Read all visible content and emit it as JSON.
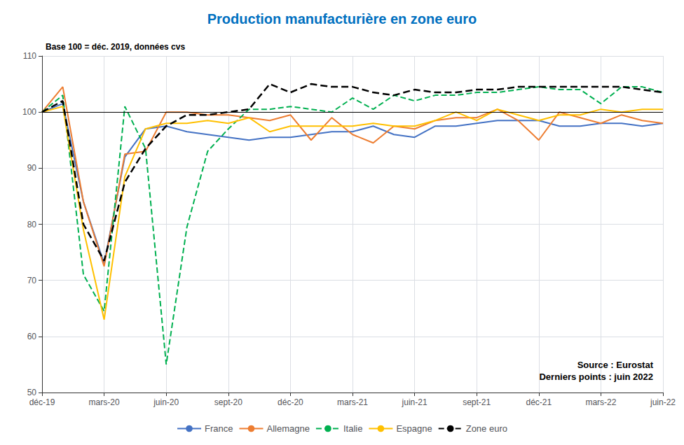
{
  "chart_data": {
    "type": "line",
    "title": "Production manufacturière en zone euro",
    "subtitle": "Base 100 = déc. 2019, données cvs",
    "annotations": [
      "Source : Eurostat\nDerniers points : juin 2022"
    ],
    "categories": [
      "déc-19",
      null,
      null,
      "mars-20",
      null,
      null,
      "juin-20",
      null,
      null,
      "sept-20",
      null,
      null,
      "déc-20",
      null,
      null,
      "mars-21",
      null,
      null,
      "juin-21",
      null,
      null,
      "sept-21",
      null,
      null,
      "déc-21",
      null,
      null,
      "mars-22",
      null,
      null,
      "juin-22"
    ],
    "ylim": [
      50,
      110
    ],
    "yticks": [
      50,
      60,
      70,
      80,
      90,
      100,
      110
    ],
    "hline": 100,
    "grid": true,
    "legend": "bottom",
    "series": [
      {
        "name": "France",
        "color": "#4472C4",
        "line_style": "solid",
        "values": [
          100.0,
          101.5,
          84.0,
          73.0,
          92.0,
          97.0,
          97.5,
          96.5,
          96.0,
          95.5,
          95.0,
          95.5,
          95.5,
          96.0,
          96.5,
          96.5,
          97.5,
          96.0,
          95.5,
          97.5,
          97.5,
          98.0,
          98.5,
          98.5,
          98.5,
          97.5,
          97.5,
          98.0,
          98.0,
          97.5,
          98.0
        ]
      },
      {
        "name": "Allemagne",
        "color": "#ED7D31",
        "line_style": "solid",
        "values": [
          100.0,
          104.5,
          84.0,
          72.5,
          92.5,
          93.0,
          100.0,
          100.0,
          99.5,
          99.5,
          99.0,
          98.5,
          99.5,
          95.0,
          99.0,
          96.0,
          94.5,
          97.5,
          97.0,
          98.5,
          99.0,
          99.0,
          100.5,
          98.5,
          95.0,
          100.0,
          99.0,
          98.0,
          99.5,
          98.5,
          98.0
        ]
      },
      {
        "name": "Italie",
        "color": "#00B050",
        "line_style": "dashed",
        "values": [
          100.0,
          103.0,
          71.0,
          64.5,
          101.0,
          93.5,
          55.0,
          79.5,
          93.0,
          97.0,
          100.5,
          100.5,
          101.0,
          100.5,
          100.0,
          102.5,
          100.5,
          103.0,
          102.0,
          103.0,
          103.0,
          103.5,
          103.5,
          104.0,
          104.5,
          104.0,
          104.0,
          101.5,
          104.5,
          104.5,
          103.5
        ]
      },
      {
        "name": "Espagne",
        "color": "#FFC000",
        "line_style": "solid",
        "values": [
          100.0,
          101.0,
          79.0,
          63.0,
          88.5,
          97.0,
          98.0,
          98.0,
          98.5,
          98.0,
          99.0,
          96.5,
          97.5,
          97.5,
          97.5,
          97.5,
          98.0,
          97.5,
          97.5,
          98.5,
          100.0,
          98.5,
          100.5,
          99.5,
          98.5,
          99.5,
          99.5,
          100.5,
          100.0,
          100.5,
          100.5
        ]
      },
      {
        "name": "Zone euro",
        "color": "#000000",
        "line_style": "dashed",
        "values": [
          100.0,
          102.0,
          80.0,
          73.5,
          87.5,
          93.5,
          97.5,
          99.5,
          99.5,
          100.0,
          100.5,
          105.0,
          103.5,
          105.0,
          104.5,
          104.5,
          103.5,
          103.0,
          104.0,
          103.5,
          103.5,
          104.0,
          104.0,
          104.5,
          104.5,
          104.5,
          104.5,
          104.5,
          104.5,
          104.0,
          103.5
        ]
      }
    ]
  }
}
